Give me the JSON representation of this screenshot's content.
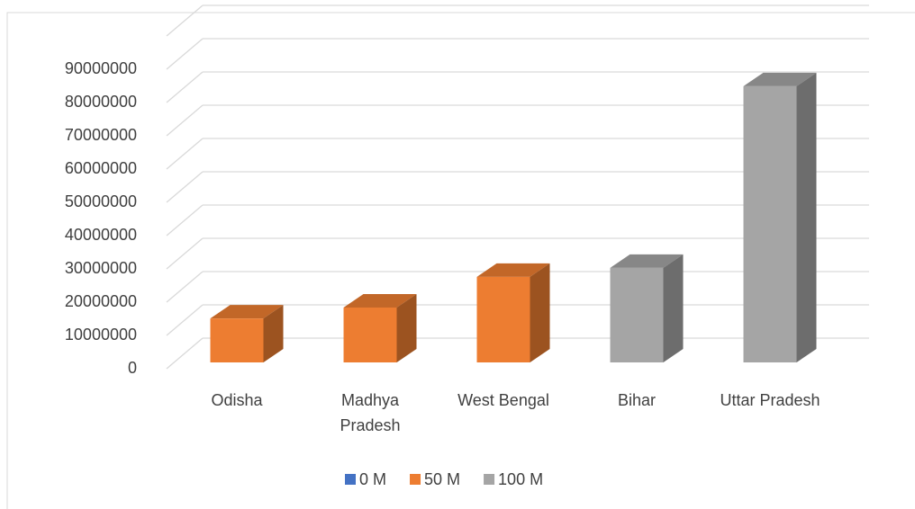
{
  "chart_data": {
    "type": "bar3d",
    "categories": [
      "Odisha",
      "Madhya Pradesh",
      "West Bengal",
      "Bihar",
      "Uttar Pradesh"
    ],
    "series": [
      {
        "name": "0 M",
        "color": "#4472c4",
        "values": [
          null,
          null,
          null,
          null,
          null
        ]
      },
      {
        "name": "50 M",
        "color": "#ed7d31",
        "values": [
          13200000,
          16500000,
          25700000,
          null,
          null
        ]
      },
      {
        "name": "100 M",
        "color": "#a5a5a5",
        "values": [
          null,
          null,
          null,
          28400000,
          83000000
        ]
      }
    ],
    "ylim": [
      0,
      100000000
    ],
    "yticks": [
      0,
      10000000,
      20000000,
      30000000,
      40000000,
      50000000,
      60000000,
      70000000,
      80000000,
      90000000
    ],
    "grid": true,
    "legend": "bottom"
  }
}
